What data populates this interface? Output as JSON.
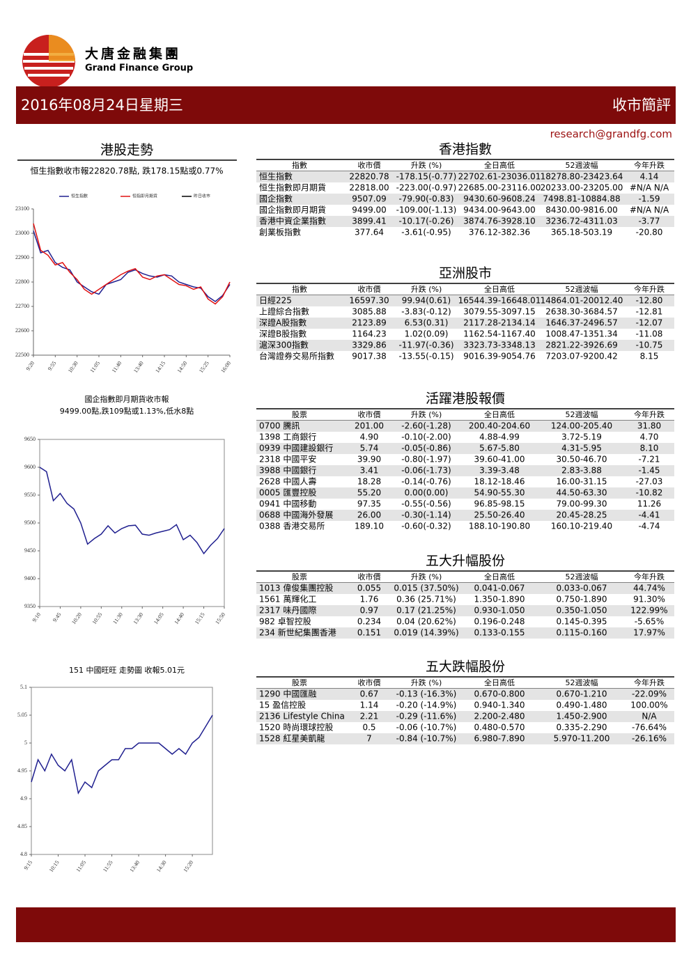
{
  "header": {
    "logo_cn": "大唐金融集團",
    "logo_en": "Grand Finance Group",
    "date": "2016年08月24日星期三",
    "section": "收市簡評",
    "email": "research@grandfg.com"
  },
  "chart_data": [
    {
      "type": "line",
      "title": "港股走勢",
      "subtitle": "恒生指數收市報22820.78點, 跌178.15點或0.77%",
      "categories": [
        "9:20",
        null,
        null,
        "9:55",
        null,
        null,
        "10:30",
        null,
        null,
        "11:05",
        null,
        null,
        "11:40",
        null,
        null,
        "13:40",
        null,
        null,
        "14:15",
        null,
        null,
        "14:50",
        null,
        null,
        "15:25",
        null,
        null,
        "16:00"
      ],
      "series": [
        {
          "name": "恒生指數",
          "color": "#1f1f8f",
          "values": [
            23010,
            22920,
            22930,
            22880,
            22860,
            22850,
            22800,
            22780,
            22760,
            22750,
            22790,
            22800,
            22810,
            22840,
            22850,
            22835,
            22825,
            22820,
            22830,
            22825,
            22800,
            22790,
            22780,
            22775,
            22740,
            22720,
            22745,
            22790
          ]
        },
        {
          "name": "恒指即月期貨",
          "color": "#e01010",
          "values": [
            23040,
            22930,
            22910,
            22870,
            22880,
            22840,
            22810,
            22770,
            22750,
            22770,
            22790,
            22810,
            22830,
            22845,
            22855,
            22820,
            22810,
            22825,
            22830,
            22810,
            22790,
            22785,
            22770,
            22780,
            22730,
            22710,
            22740,
            22800
          ]
        },
        {
          "name": "昨日收市",
          "color": "#000000",
          "values": [
            null,
            null,
            null,
            null,
            null,
            null,
            null,
            null,
            null,
            null,
            null,
            null,
            null,
            null,
            null,
            null,
            null,
            null,
            null,
            null,
            null,
            null,
            null,
            null,
            null,
            null,
            null,
            null
          ]
        }
      ],
      "ylim": [
        22500,
        23100
      ],
      "yticks": [
        22500,
        22600,
        22700,
        22800,
        22900,
        23000,
        23100
      ]
    },
    {
      "type": "line",
      "title": "國企指數即月期貨收市報",
      "subtitle": "9499.00點,跌109點或1.13%,低水8點",
      "categories": [
        "9:10",
        null,
        null,
        "9:45",
        null,
        null,
        "10:20",
        null,
        null,
        "10:55",
        null,
        null,
        "11:30",
        null,
        null,
        "13:30",
        null,
        null,
        "14:05",
        null,
        null,
        "14:40",
        null,
        null,
        "15:15",
        null,
        null,
        "15:50"
      ],
      "series": [
        {
          "name": "國企指數即月期貨",
          "color": "#1f1f8f",
          "values": [
            9600,
            9592,
            9540,
            9553,
            9535,
            9525,
            9500,
            9462,
            9472,
            9480,
            9495,
            9482,
            9490,
            9495,
            9496,
            9480,
            9478,
            9482,
            9485,
            9488,
            9497,
            9470,
            9478,
            9465,
            9445,
            9460,
            9472,
            9490
          ]
        }
      ],
      "ylim": [
        9350,
        9650
      ],
      "yticks": [
        9350,
        9400,
        9450,
        9500,
        9550,
        9600,
        9650
      ]
    },
    {
      "type": "line",
      "title": "151 中國旺旺 走勢圖 收報5.01元",
      "categories": [
        "9:15",
        null,
        null,
        null,
        "10:15",
        null,
        null,
        null,
        "11:05",
        null,
        null,
        null,
        "11:55",
        null,
        null,
        null,
        "13:40",
        null,
        null,
        null,
        "14:30",
        null,
        null,
        null,
        "15:20",
        null,
        null,
        null
      ],
      "series": [
        {
          "name": "中國旺旺",
          "color": "#1f1f8f",
          "values": [
            4.93,
            4.97,
            4.95,
            4.98,
            4.96,
            4.95,
            4.97,
            4.91,
            4.93,
            4.92,
            4.95,
            4.96,
            4.97,
            4.97,
            4.99,
            4.99,
            5.0,
            5.0,
            5.0,
            5.0,
            4.99,
            4.98,
            4.99,
            4.98,
            5.0,
            5.01,
            5.03,
            5.05
          ]
        }
      ],
      "ylim": [
        4.8,
        5.1
      ],
      "yticks": [
        4.8,
        4.85,
        4.9,
        4.95,
        5,
        5.05,
        5.1
      ]
    }
  ],
  "tables": [
    {
      "title": "香港指數",
      "headers": [
        "指數",
        "收市價",
        "升跌 (%)",
        "全日高低",
        "52週波幅",
        "今年升跌"
      ],
      "rows": [
        [
          "恒生指數",
          "22820.78",
          "-178.15(-0.77)",
          "22702.61-23036.01",
          "18278.80-23423.64",
          "4.14"
        ],
        [
          "恒生指數即月期貨",
          "22818.00",
          "-223.00(-0.97)",
          "22685.00-23116.00",
          "20233.00-23205.00",
          "#N/A N/A"
        ],
        [
          "國企指數",
          "9507.09",
          "-79.90(-0.83)",
          "9430.60-9608.24",
          "7498.81-10884.88",
          "-1.59"
        ],
        [
          "國企指數即月期貨",
          "9499.00",
          "-109.00(-1.13)",
          "9434.00-9643.00",
          "8430.00-9816.00",
          "#N/A N/A"
        ],
        [
          "香港中資企業指數",
          "3899.41",
          "-10.17(-0.26)",
          "3874.76-3928.10",
          "3236.72-4311.03",
          "-3.77"
        ],
        [
          "創業板指數",
          "377.64",
          "-3.61(-0.95)",
          "376.12-382.36",
          "365.18-503.19",
          "-20.80"
        ]
      ]
    },
    {
      "title": "亞洲股市",
      "headers": [
        "指數",
        "收市價",
        "升跌 (%)",
        "全日高低",
        "52週波幅",
        "今年升跌"
      ],
      "rows": [
        [
          "日經225",
          "16597.30",
          "99.94(0.61)",
          "16544.39-16648.01",
          "14864.01-20012.40",
          "-12.80"
        ],
        [
          "上證綜合指數",
          "3085.88",
          "-3.83(-0.12)",
          "3079.55-3097.15",
          "2638.30-3684.57",
          "-12.81"
        ],
        [
          "深證A股指數",
          "2123.89",
          "6.53(0.31)",
          "2117.28-2134.14",
          "1646.37-2496.57",
          "-12.07"
        ],
        [
          "深證B股指數",
          "1164.23",
          "1.02(0.09)",
          "1162.54-1167.40",
          "1008.47-1351.34",
          "-11.08"
        ],
        [
          "滬深300指數",
          "3329.86",
          "-11.97(-0.36)",
          "3323.73-3348.13",
          "2821.22-3926.69",
          "-10.75"
        ],
        [
          "台灣證券交易所指數",
          "9017.38",
          "-13.55(-0.15)",
          "9016.39-9054.76",
          "7203.07-9200.42",
          "8.15"
        ]
      ]
    },
    {
      "title": "活躍港股報價",
      "headers": [
        "股票",
        "收市價",
        "升跌 (%)",
        "全日高低",
        "52週波幅",
        "今年升跌"
      ],
      "rows": [
        [
          "0700 騰訊",
          "201.00",
          "-2.60(-1.28)",
          "200.40-204.60",
          "124.00-205.40",
          "31.80"
        ],
        [
          "1398 工商銀行",
          "4.90",
          "-0.10(-2.00)",
          "4.88-4.99",
          "3.72-5.19",
          "4.70"
        ],
        [
          "0939 中國建設銀行",
          "5.74",
          "-0.05(-0.86)",
          "5.67-5.80",
          "4.31-5.95",
          "8.10"
        ],
        [
          "2318 中國平安",
          "39.90",
          "-0.80(-1.97)",
          "39.60-41.00",
          "30.50-46.70",
          "-7.21"
        ],
        [
          "3988 中國銀行",
          "3.41",
          "-0.06(-1.73)",
          "3.39-3.48",
          "2.83-3.88",
          "-1.45"
        ],
        [
          "2628 中國人壽",
          "18.28",
          "-0.14(-0.76)",
          "18.12-18.46",
          "16.00-31.15",
          "-27.03"
        ],
        [
          "0005 匯豐控股",
          "55.20",
          "0.00(0.00)",
          "54.90-55.30",
          "44.50-63.30",
          "-10.82"
        ],
        [
          "0941 中國移動",
          "97.35",
          "-0.55(-0.56)",
          "96.85-98.15",
          "79.00-99.30",
          "11.26"
        ],
        [
          "0688 中國海外發展",
          "26.00",
          "-0.30(-1.14)",
          "25.50-26.40",
          "20.45-28.25",
          "-4.41"
        ],
        [
          "0388 香港交易所",
          "189.10",
          "-0.60(-0.32)",
          "188.10-190.80",
          "160.10-219.40",
          "-4.74"
        ]
      ]
    },
    {
      "title": "五大升幅股份",
      "headers": [
        "股票",
        "收市價",
        "升跌 (%)",
        "全日高低",
        "52週波幅",
        "今年升跌"
      ],
      "rows": [
        [
          "1013 偉俊集團控股",
          "0.055",
          "0.015 (37.50%)",
          "0.041-0.067",
          "0.033-0.067",
          "44.74%"
        ],
        [
          "1561 萬輝化工",
          "1.76",
          "0.36 (25.71%)",
          "1.350-1.890",
          "0.750-1.890",
          "91.30%"
        ],
        [
          "2317 味丹國際",
          "0.97",
          "0.17 (21.25%)",
          "0.930-1.050",
          "0.350-1.050",
          "122.99%"
        ],
        [
          "982 卓智控股",
          "0.234",
          "0.04 (20.62%)",
          "0.196-0.248",
          "0.145-0.395",
          "-5.65%"
        ],
        [
          "234 新世紀集團香港",
          "0.151",
          "0.019 (14.39%)",
          "0.133-0.155",
          "0.115-0.160",
          "17.97%"
        ]
      ]
    },
    {
      "title": "五大跌幅股份",
      "headers": [
        "股票",
        "收市價",
        "升跌 (%)",
        "全日高低",
        "52週波幅",
        "今年升跌"
      ],
      "rows": [
        [
          "1290 中國匯融",
          "0.67",
          "-0.13 (-16.3%)",
          "0.670-0.800",
          "0.670-1.210",
          "-22.09%"
        ],
        [
          "15 盈信控股",
          "1.14",
          "-0.20 (-14.9%)",
          "0.940-1.340",
          "0.490-1.480",
          "100.00%"
        ],
        [
          "2136 Lifestyle China",
          "2.21",
          "-0.29 (-11.6%)",
          "2.200-2.480",
          "1.450-2.900",
          "N/A"
        ],
        [
          "1520 時尚環球控股",
          "0.5",
          "-0.06 (-10.7%)",
          "0.480-0.570",
          "0.335-2.290",
          "-76.64%"
        ],
        [
          "1528 紅星美凱龍",
          "7",
          "-0.84 (-10.7%)",
          "6.980-7.890",
          "5.970-11.200",
          "-26.16%"
        ]
      ]
    }
  ]
}
